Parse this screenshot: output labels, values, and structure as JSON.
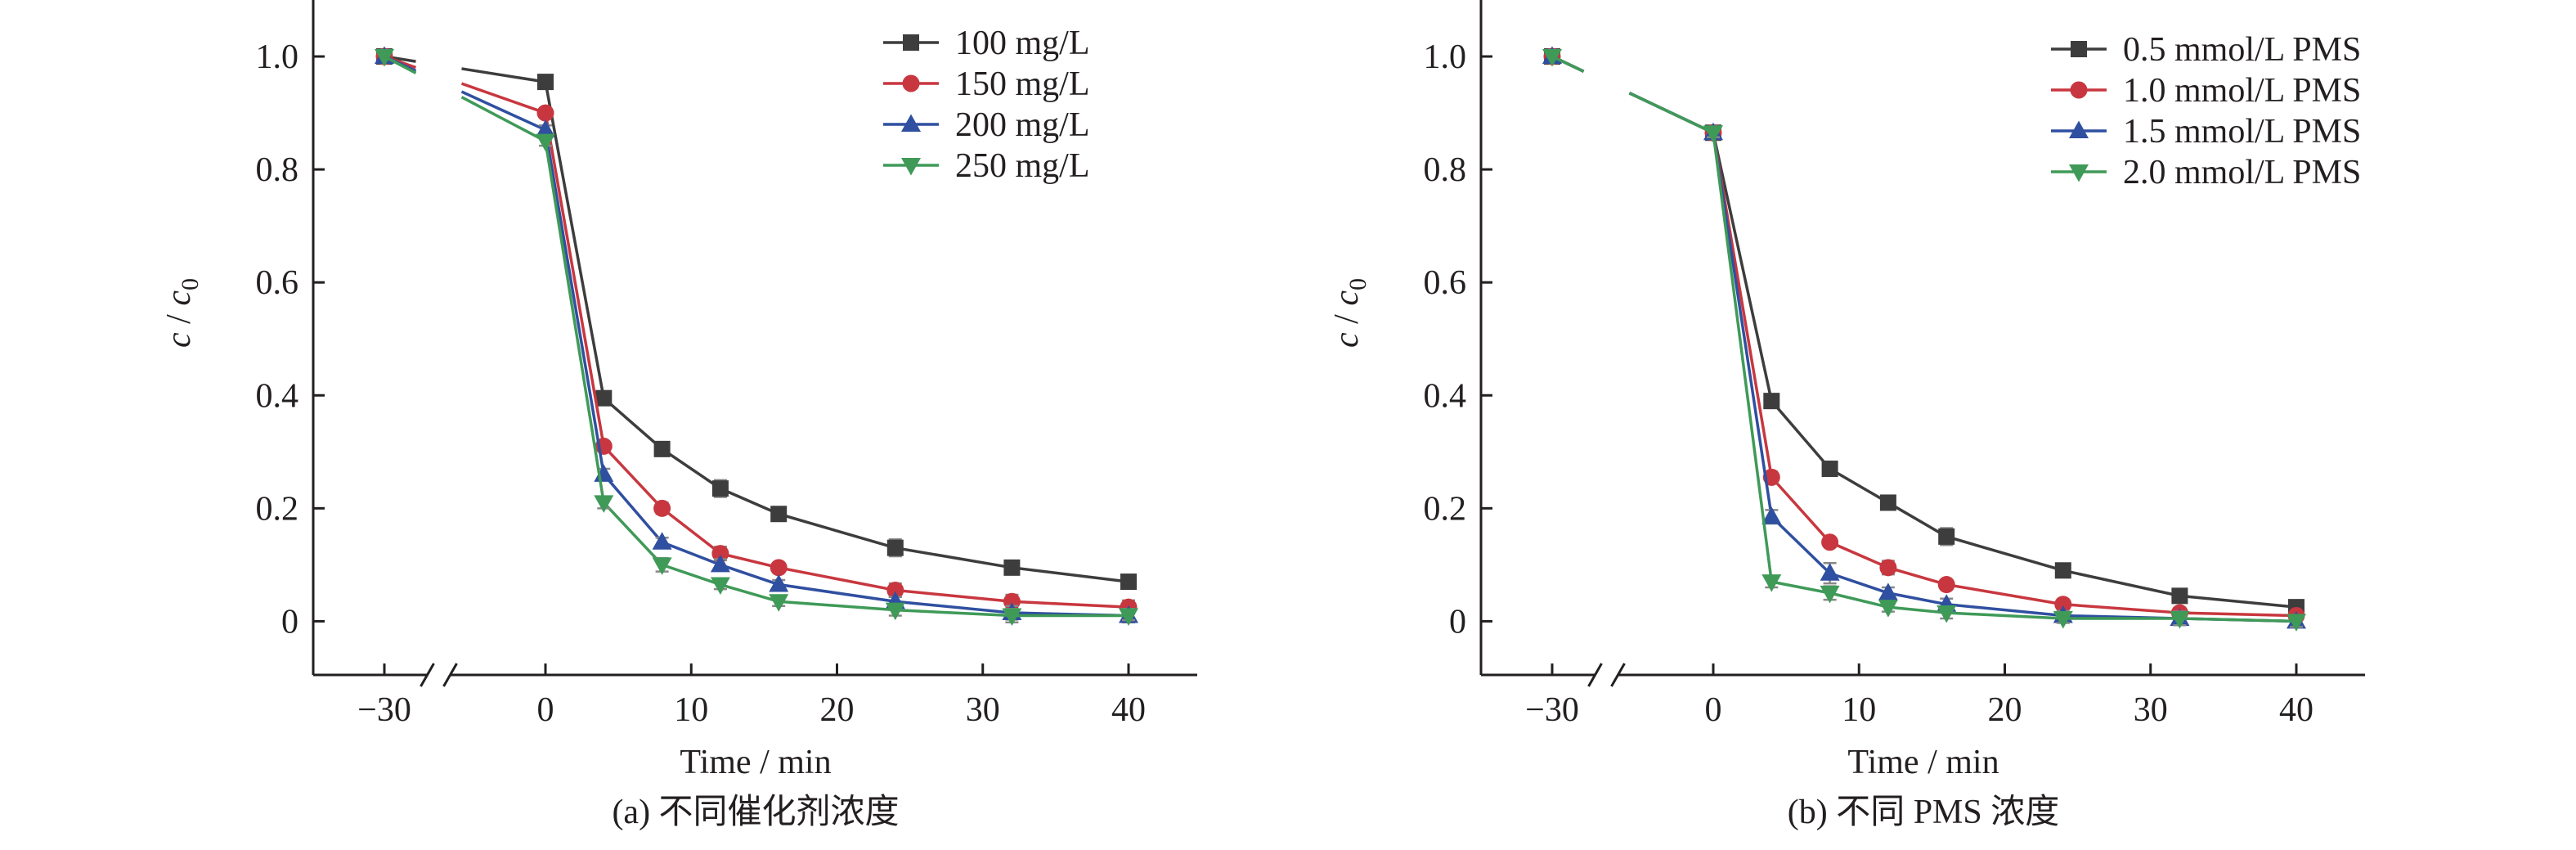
{
  "chart_data": [
    {
      "type": "line",
      "caption": "(a) 不同催化剂浓度",
      "xlabel": "Time / min",
      "ylabel": "c / c0",
      "ylabel_main": "c",
      "ylabel_sep": " / ",
      "ylabel_sub_base": "c",
      "ylabel_sub": "0",
      "x_ticks": [
        -30,
        0,
        10,
        20,
        30,
        40
      ],
      "x_tick_labels": [
        "−30",
        "0",
        "10",
        "20",
        "30",
        "40"
      ],
      "y_ticks": [
        0,
        0.2,
        0.4,
        0.6,
        0.8,
        1.0
      ],
      "y_tick_labels": [
        "0",
        "0.2",
        "0.4",
        "0.6",
        "0.8",
        "1.0"
      ],
      "ylim": [
        -0.095,
        1.1
      ],
      "x_axis_break": true,
      "legend_position": "top-right",
      "series": [
        {
          "name": "100 mg/L",
          "color": "#3d3d3d",
          "marker": "square",
          "x": [
            -30,
            0,
            4,
            8,
            12,
            16,
            24,
            32,
            40
          ],
          "y": [
            1.0,
            0.955,
            0.395,
            0.305,
            0.235,
            0.19,
            0.13,
            0.095,
            0.07
          ],
          "err": [
            0,
            0.005,
            0.01,
            0.008,
            0.015,
            0.008,
            0.015,
            0.008,
            0.012
          ]
        },
        {
          "name": "150 mg/L",
          "color": "#c8373f",
          "marker": "circle",
          "x": [
            -30,
            0,
            4,
            8,
            12,
            16,
            24,
            32,
            40
          ],
          "y": [
            1.0,
            0.9,
            0.31,
            0.2,
            0.12,
            0.095,
            0.055,
            0.035,
            0.025
          ],
          "err": [
            0,
            0.008,
            0.008,
            0.01,
            0.012,
            0.008,
            0.012,
            0.012,
            0.012
          ]
        },
        {
          "name": "200 mg/L",
          "color": "#2f4fa0",
          "marker": "triangle-up",
          "x": [
            -30,
            0,
            4,
            8,
            12,
            16,
            24,
            32,
            40
          ],
          "y": [
            1.0,
            0.87,
            0.26,
            0.14,
            0.1,
            0.065,
            0.035,
            0.015,
            0.01
          ],
          "err": [
            0,
            0.008,
            0.01,
            0.008,
            0.01,
            0.008,
            0.008,
            0.012,
            0.012
          ]
        },
        {
          "name": "250 mg/L",
          "color": "#3f9a58",
          "marker": "triangle-down",
          "x": [
            -30,
            0,
            4,
            8,
            12,
            16,
            24,
            32,
            40
          ],
          "y": [
            1.0,
            0.85,
            0.21,
            0.1,
            0.065,
            0.035,
            0.02,
            0.01,
            0.01
          ],
          "err": [
            0,
            0.008,
            0.01,
            0.012,
            0.008,
            0.008,
            0.01,
            0.012,
            0.008
          ]
        }
      ]
    },
    {
      "type": "line",
      "caption": "(b) 不同 PMS 浓度",
      "xlabel": "Time / min",
      "ylabel": "c / c0",
      "ylabel_main": "c",
      "ylabel_sep": " / ",
      "ylabel_sub_base": "c",
      "ylabel_sub": "0",
      "x_ticks": [
        -30,
        0,
        10,
        20,
        30,
        40
      ],
      "x_tick_labels": [
        "−30",
        "0",
        "10",
        "20",
        "30",
        "40"
      ],
      "y_ticks": [
        0,
        0.2,
        0.4,
        0.6,
        0.8,
        1.0
      ],
      "y_tick_labels": [
        "0",
        "0.2",
        "0.4",
        "0.6",
        "0.8",
        "1.0"
      ],
      "ylim": [
        -0.095,
        1.1
      ],
      "x_axis_break": true,
      "legend_position": "top-right",
      "series": [
        {
          "name": "0.5 mmol/L PMS",
          "color": "#3d3d3d",
          "marker": "square",
          "x": [
            -30,
            0,
            4,
            8,
            12,
            16,
            24,
            32,
            40
          ],
          "y": [
            1.0,
            0.865,
            0.39,
            0.27,
            0.21,
            0.15,
            0.09,
            0.045,
            0.025
          ],
          "err": [
            0,
            0.008,
            0.008,
            0.008,
            0.01,
            0.015,
            0.008,
            0.008,
            0.008
          ]
        },
        {
          "name": "1.0 mmol/L PMS",
          "color": "#c8373f",
          "marker": "circle",
          "x": [
            -30,
            0,
            4,
            8,
            12,
            16,
            24,
            32,
            40
          ],
          "y": [
            1.0,
            0.865,
            0.255,
            0.14,
            0.095,
            0.065,
            0.03,
            0.015,
            0.01
          ],
          "err": [
            0,
            0.008,
            0.01,
            0.008,
            0.012,
            0.008,
            0.008,
            0.008,
            0.008
          ]
        },
        {
          "name": "1.5 mmol/L PMS",
          "color": "#2f4fa0",
          "marker": "triangle-up",
          "x": [
            -30,
            0,
            4,
            8,
            12,
            16,
            24,
            32,
            40
          ],
          "y": [
            1.0,
            0.865,
            0.185,
            0.085,
            0.05,
            0.03,
            0.01,
            0.005,
            0.0
          ],
          "err": [
            0,
            0.008,
            0.012,
            0.018,
            0.01,
            0.01,
            0.008,
            0.012,
            0.01
          ]
        },
        {
          "name": "2.0 mmol/L PMS",
          "color": "#3f9a58",
          "marker": "triangle-down",
          "x": [
            -30,
            0,
            4,
            8,
            12,
            16,
            24,
            32,
            40
          ],
          "y": [
            1.0,
            0.865,
            0.07,
            0.05,
            0.025,
            0.015,
            0.005,
            0.005,
            0.0
          ],
          "err": [
            0,
            0.008,
            0.01,
            0.012,
            0.008,
            0.01,
            0.008,
            0.012,
            0.01
          ]
        }
      ]
    }
  ]
}
